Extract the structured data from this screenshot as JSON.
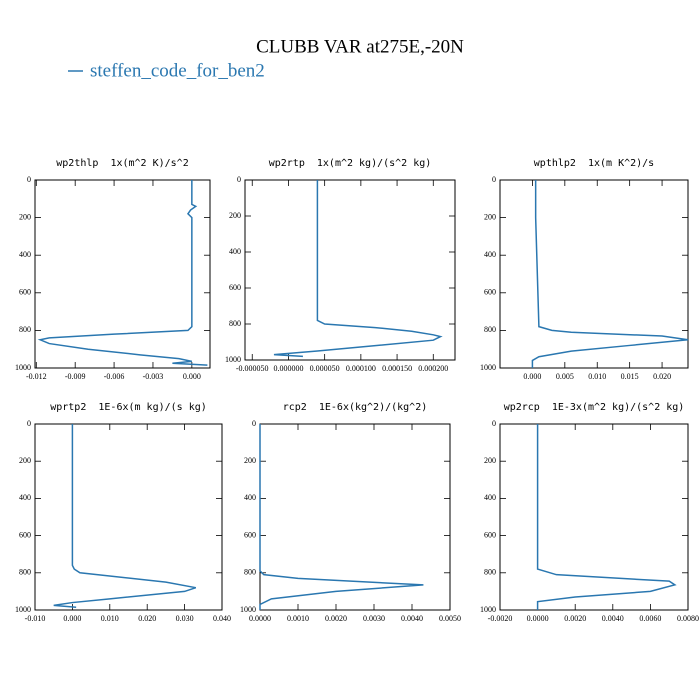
{
  "title": "CLUBB VAR at275E,-20N",
  "legend": {
    "name": "steffen_code_for_ben2",
    "color": "#2a77b0"
  },
  "chart_data": [
    {
      "type": "line",
      "title": "wp2thlp  1x(m^2 K)/s^2",
      "levels": [
        0,
        130,
        140,
        160,
        180,
        200,
        240,
        780,
        800,
        820,
        840,
        850,
        870,
        900,
        930,
        950,
        965,
        975,
        985
      ],
      "series": [
        {
          "color": "#2a77b0",
          "values": [
            0,
            0,
            0.0003,
            -0.0001,
            -0.0003,
            0,
            0,
            0,
            -0.0003,
            -0.006,
            -0.011,
            -0.0117,
            -0.011,
            -0.008,
            -0.004,
            -0.001,
            0,
            -0.0015,
            0.0012
          ]
        }
      ],
      "xlim": [
        -0.0121,
        0.0014
      ],
      "ylim": [
        0,
        1000
      ],
      "y_inverted": true,
      "xticks": [
        {
          "value": -0.012,
          "label": "-0.012"
        },
        {
          "value": -0.009,
          "label": "-0.009"
        },
        {
          "value": -0.006,
          "label": "-0.006"
        },
        {
          "value": -0.003,
          "label": "-0.003"
        },
        {
          "value": 0,
          "label": "0.000"
        }
      ],
      "yticks": [
        0,
        200,
        400,
        600,
        800,
        1000
      ]
    },
    {
      "type": "line",
      "title": "wp2rtp  1x(m^2 kg)/(s^2 kg)",
      "levels": [
        0,
        200,
        780,
        800,
        820,
        840,
        860,
        870,
        890,
        920,
        950,
        970,
        980
      ],
      "series": [
        {
          "color": "#2a77b0",
          "values": [
            4e-05,
            4e-05,
            4e-05,
            5e-05,
            0.00012,
            0.00017,
            0.0002,
            0.00021,
            0.0002,
            0.00012,
            4e-05,
            -2e-05,
            2e-05
          ]
        }
      ],
      "xlim": [
        -6e-05,
        0.00023
      ],
      "ylim": [
        0,
        1000
      ],
      "y_inverted": true,
      "xticks": [
        {
          "value": -5e-05,
          "label": "-0.000050"
        },
        {
          "value": 0,
          "label": "0.000000"
        },
        {
          "value": 5e-05,
          "label": "0.000050"
        },
        {
          "value": 0.0001,
          "label": "0.000100"
        },
        {
          "value": 0.00015,
          "label": "0.000150"
        },
        {
          "value": 0.0002,
          "label": "0.000200"
        }
      ],
      "yticks": [
        0,
        200,
        400,
        600,
        800,
        1000
      ]
    },
    {
      "type": "line",
      "title": "wpthlp2  1x(m K^2)/s",
      "levels": [
        0,
        150,
        200,
        780,
        800,
        810,
        830,
        850,
        880,
        910,
        940,
        960,
        1000
      ],
      "series": [
        {
          "color": "#2a77b0",
          "values": [
            0.0005,
            0.0005,
            0.0005,
            0.001,
            0.003,
            0.006,
            0.02,
            0.024,
            0.015,
            0.006,
            0.001,
            0,
            0
          ]
        }
      ],
      "xlim": [
        -0.005,
        0.024
      ],
      "ylim": [
        0,
        1000
      ],
      "y_inverted": true,
      "xticks": [
        {
          "value": 0,
          "label": "0.000"
        },
        {
          "value": 0.005,
          "label": "0.005"
        },
        {
          "value": 0.01,
          "label": "0.010"
        },
        {
          "value": 0.015,
          "label": "0.015"
        },
        {
          "value": 0.02,
          "label": "0.020"
        }
      ],
      "yticks": [
        0,
        200,
        400,
        600,
        800,
        1000
      ]
    },
    {
      "type": "line",
      "title": "wprtp2  1E-6x(m kg)/(s kg)",
      "levels": [
        0,
        760,
        780,
        800,
        850,
        880,
        900,
        940,
        960,
        975,
        985
      ],
      "series": [
        {
          "color": "#2a77b0",
          "values": [
            0,
            0,
            0.0005,
            0.002,
            0.025,
            0.033,
            0.03,
            0.01,
            0,
            -0.005,
            0.001
          ]
        }
      ],
      "xlim": [
        -0.01,
        0.04
      ],
      "ylim": [
        0,
        1000
      ],
      "y_inverted": true,
      "xticks": [
        {
          "value": -0.01,
          "label": "-0.010"
        },
        {
          "value": 0,
          "label": "0.000"
        },
        {
          "value": 0.01,
          "label": "0.010"
        },
        {
          "value": 0.02,
          "label": "0.020"
        },
        {
          "value": 0.03,
          "label": "0.030"
        },
        {
          "value": 0.04,
          "label": "0.040"
        }
      ],
      "yticks": [
        0,
        200,
        400,
        600,
        800,
        1000
      ]
    },
    {
      "type": "line",
      "title": "rcp2  1E-6x(kg^2)/(kg^2)",
      "levels": [
        0,
        790,
        810,
        830,
        865,
        900,
        940,
        970,
        1000
      ],
      "series": [
        {
          "color": "#2a77b0",
          "values": [
            0,
            0,
            0.0001,
            0.001,
            0.0043,
            0.002,
            0.0003,
            0,
            0
          ]
        }
      ],
      "xlim": [
        0,
        0.005
      ],
      "ylim": [
        0,
        1000
      ],
      "y_inverted": true,
      "xticks": [
        {
          "value": 0,
          "label": "0.0000"
        },
        {
          "value": 0.001,
          "label": "0.0010"
        },
        {
          "value": 0.002,
          "label": "0.0020"
        },
        {
          "value": 0.003,
          "label": "0.0030"
        },
        {
          "value": 0.004,
          "label": "0.0040"
        },
        {
          "value": 0.005,
          "label": "0.0050"
        }
      ],
      "yticks": [
        0,
        200,
        400,
        600,
        800,
        1000
      ]
    },
    {
      "type": "line",
      "title": "wp2rcp  1E-3x(m^2 kg)/(s^2 kg)",
      "levels": [
        0,
        780,
        810,
        845,
        865,
        900,
        930,
        955,
        1000
      ],
      "series": [
        {
          "color": "#2a77b0",
          "values": [
            0,
            0,
            0.001,
            0.007,
            0.0073,
            0.006,
            0.002,
            0,
            0
          ]
        }
      ],
      "xlim": [
        -0.002,
        0.008
      ],
      "ylim": [
        0,
        1000
      ],
      "y_inverted": true,
      "xticks": [
        {
          "value": -0.002,
          "label": "-0.0020"
        },
        {
          "value": 0,
          "label": "0.0000"
        },
        {
          "value": 0.002,
          "label": "0.0020"
        },
        {
          "value": 0.004,
          "label": "0.0040"
        },
        {
          "value": 0.006,
          "label": "0.0060"
        },
        {
          "value": 0.008,
          "label": "0.0080"
        }
      ],
      "yticks": [
        0,
        200,
        400,
        600,
        800,
        1000
      ]
    }
  ]
}
